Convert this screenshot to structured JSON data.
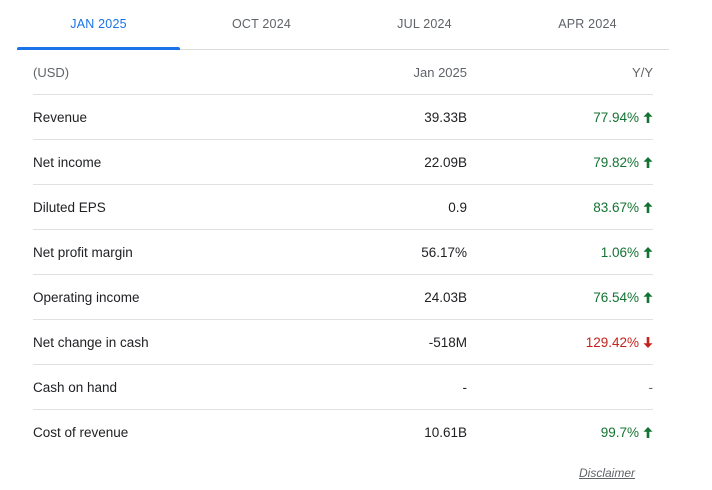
{
  "tabs": [
    {
      "label": "JAN 2025",
      "active": true
    },
    {
      "label": "OCT 2024",
      "active": false
    },
    {
      "label": "JUL 2024",
      "active": false
    },
    {
      "label": "APR 2024",
      "active": false
    }
  ],
  "table": {
    "header": {
      "label": "(USD)",
      "value": "Jan 2025",
      "yoy": "Y/Y"
    },
    "rows": [
      {
        "label": "Revenue",
        "value": "39.33B",
        "yoy": "77.94%",
        "trend": "up",
        "icon": "arrow-up-icon"
      },
      {
        "label": "Net income",
        "value": "22.09B",
        "yoy": "79.82%",
        "trend": "up",
        "icon": "arrow-up-icon"
      },
      {
        "label": "Diluted EPS",
        "value": "0.9",
        "yoy": "83.67%",
        "trend": "up",
        "icon": "arrow-up-icon"
      },
      {
        "label": "Net profit margin",
        "value": "56.17%",
        "yoy": "1.06%",
        "trend": "up",
        "icon": "arrow-up-icon"
      },
      {
        "label": "Operating income",
        "value": "24.03B",
        "yoy": "76.54%",
        "trend": "up",
        "icon": "arrow-up-icon"
      },
      {
        "label": "Net change in cash",
        "value": "-518M",
        "yoy": "129.42%",
        "trend": "down",
        "icon": "arrow-down-icon"
      },
      {
        "label": "Cash on hand",
        "value": "-",
        "yoy": "-",
        "trend": "neutral",
        "icon": ""
      },
      {
        "label": "Cost of revenue",
        "value": "10.61B",
        "yoy": "99.7%",
        "trend": "up",
        "icon": "arrow-up-icon"
      }
    ]
  },
  "disclaimer": "Disclaimer",
  "colors": {
    "accent": "#1a73e8",
    "up": "#137333",
    "down": "#c5221f"
  }
}
